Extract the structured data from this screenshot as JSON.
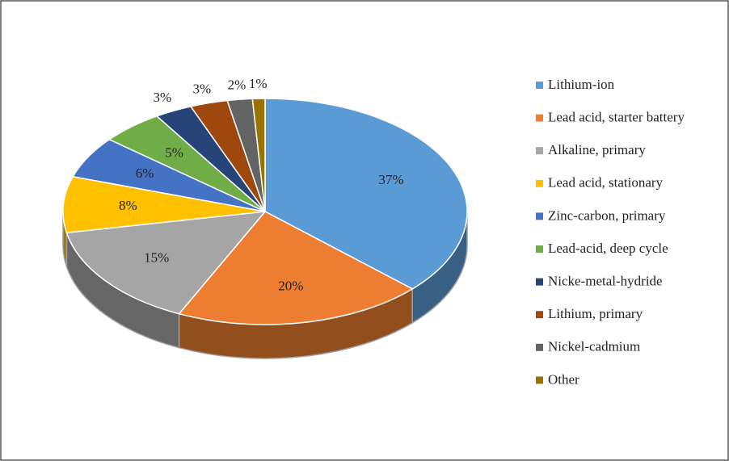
{
  "chart_data": {
    "type": "pie3d",
    "categories": [
      "Lithium-ion",
      "Lead acid, starter battery",
      "Alkaline, primary",
      "Lead acid, stationary",
      "Zinc-carbon, primary",
      "Lead-acid, deep cycle",
      "Nicke-metal-hydride",
      "Lithium, primary",
      "Nickel-cadmium",
      "Other"
    ],
    "values": [
      37,
      20,
      15,
      8,
      6,
      5,
      3,
      3,
      2,
      1
    ],
    "value_labels": [
      "37%",
      "20%",
      "15%",
      "8%",
      "6%",
      "5%",
      "3%",
      "3%",
      "2%",
      "1%"
    ],
    "colors": [
      "#5b9bd5",
      "#ed7d31",
      "#a5a5a5",
      "#ffc000",
      "#4472c4",
      "#70ad47",
      "#264478",
      "#9e480e",
      "#636363",
      "#997300"
    ],
    "legend": "right"
  }
}
